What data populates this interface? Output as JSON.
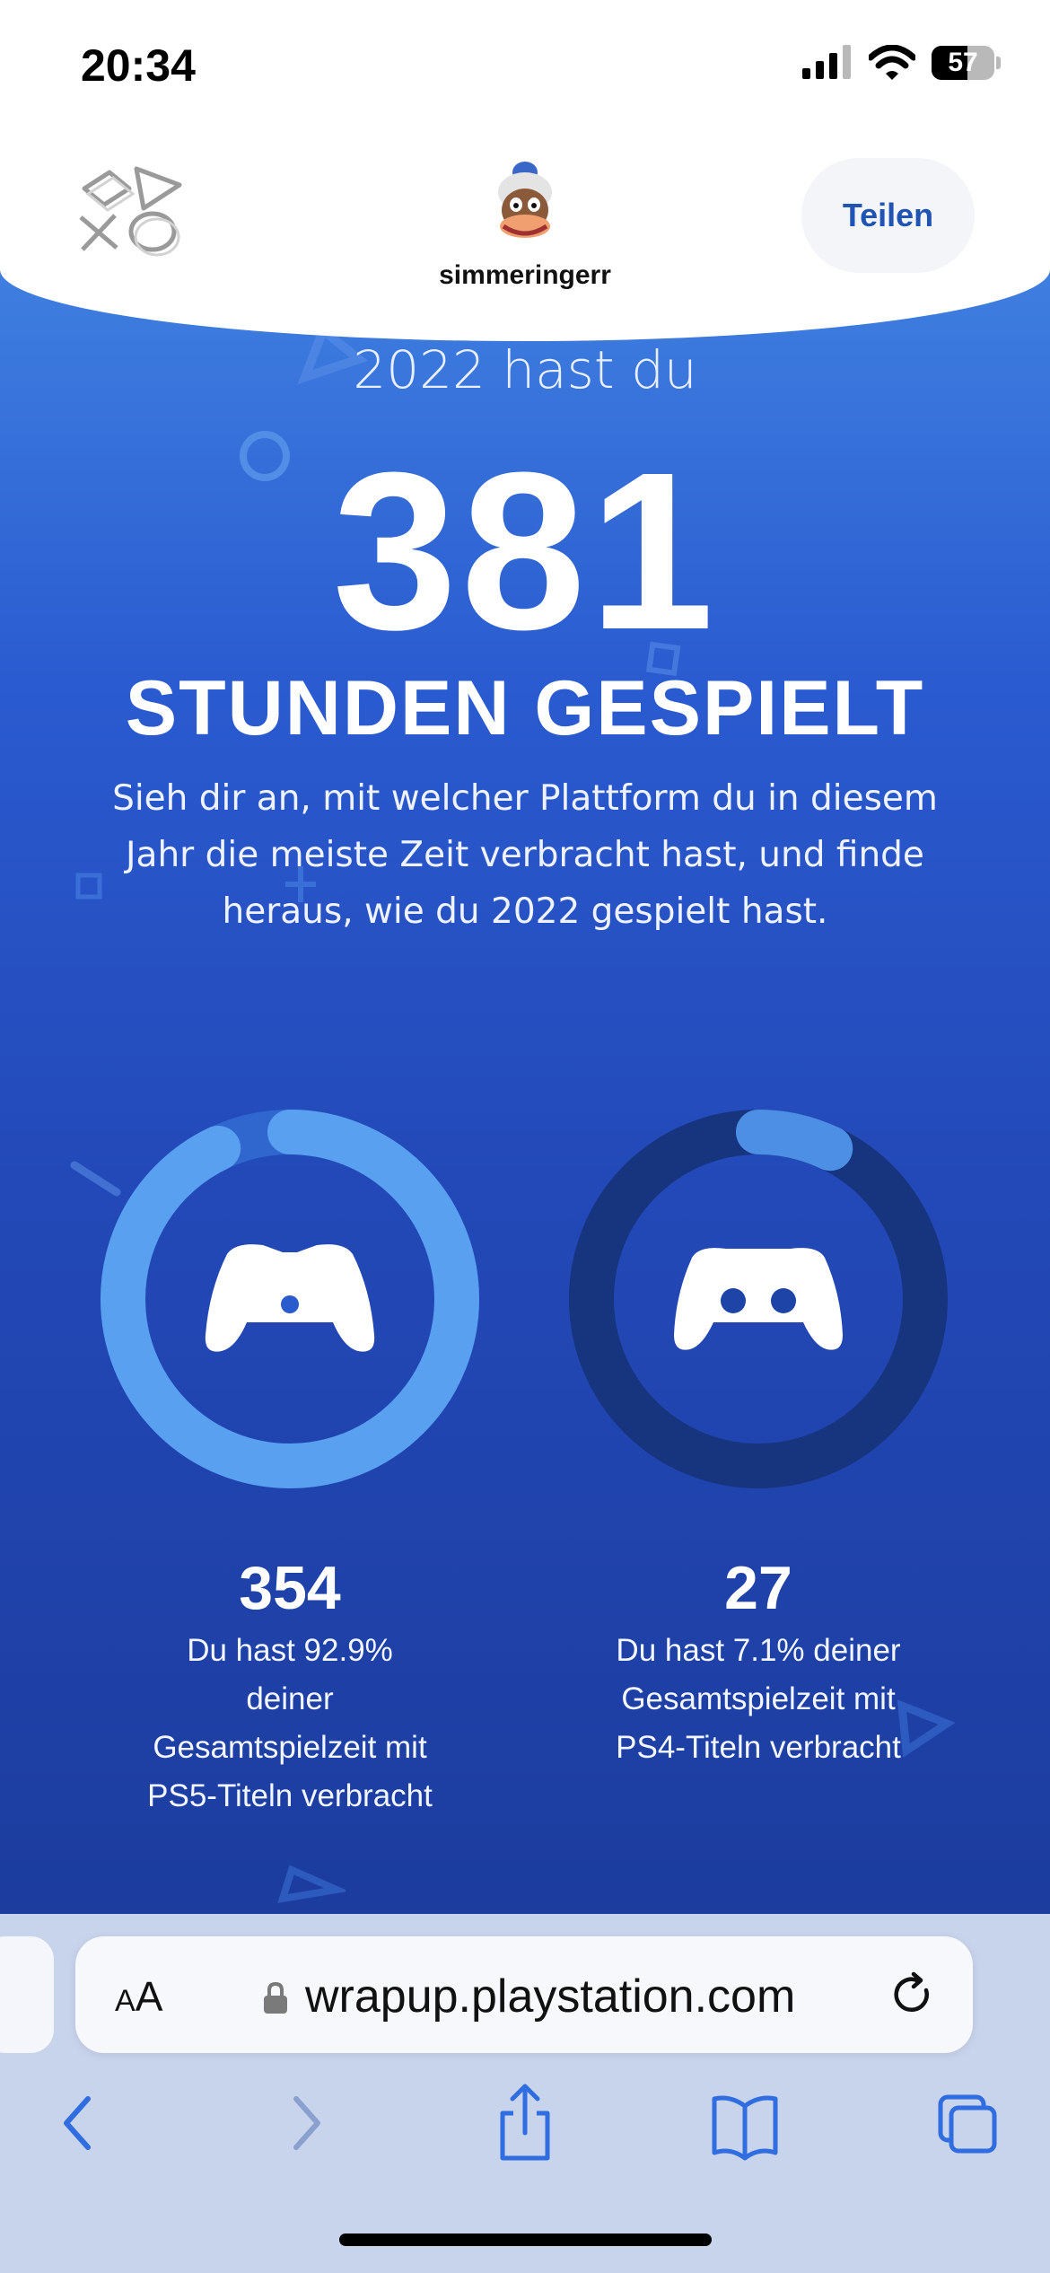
{
  "status_bar": {
    "time": "20:34",
    "battery": "57"
  },
  "header": {
    "username": "simmeringerr",
    "share_label": "Teilen"
  },
  "hero": {
    "intro": "2022 hast du",
    "hours_total": "381",
    "hours_label": "STUNDEN GESPIELT",
    "description": "Sieh dir an, mit welcher Plattform du in diesem Jahr die meiste Zeit verbracht hast, und finde heraus, wie du 2022 gespielt hast."
  },
  "platforms": [
    {
      "hours": "354",
      "description": "Du hast 92.9% deiner Gesamtspielzeit mit PS5-Titeln verbracht",
      "share": 0.929,
      "icon": "ps5-controller-icon"
    },
    {
      "hours": "27",
      "description": "Du hast 7.1% deiner Gesamtspielzeit mit PS4-Titeln verbracht",
      "share": 0.071,
      "icon": "ps4-controller-icon"
    }
  ],
  "browser": {
    "text_size_small": "A",
    "text_size_large": "A",
    "url": "wrapup.playstation.com"
  },
  "colors": {
    "accent_blue": "#1f54b5",
    "ring_ps5": "#5aa0f0",
    "ring_ps4": "#4d8fe4",
    "ring_track": "#17347e"
  }
}
